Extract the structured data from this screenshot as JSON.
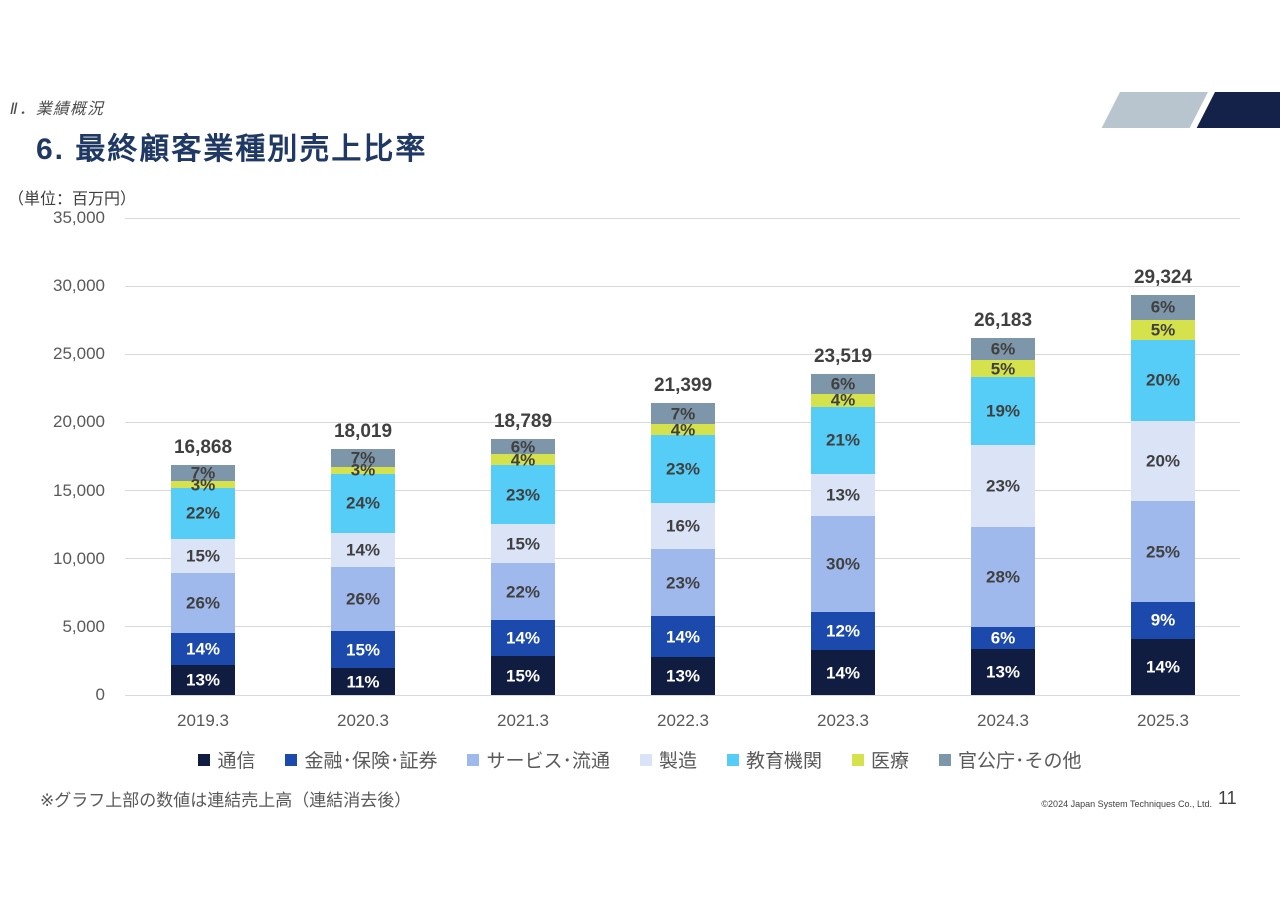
{
  "slide": {
    "section": "Ⅱ．業績概況",
    "title": "6. 最終顧客業種別売上比率",
    "unit_label": "（単位：百万円）",
    "footnote": "※グラフ上部の数値は連結売上高（連結消去後）",
    "copyright": "©2024 Japan System Techniques Co., Ltd.",
    "page_number": "11",
    "accent_colors": {
      "title_navy": "#1f3864",
      "deco_light": "#b8c5cf",
      "deco_dark": "#14224a"
    }
  },
  "chart_data": {
    "type": "bar",
    "stacked": true,
    "grid": true,
    "legend_position": "bottom",
    "ylim": [
      0,
      35000
    ],
    "y_ticks": [
      {
        "value": 0,
        "label": "0"
      },
      {
        "value": 5000,
        "label": "5,000"
      },
      {
        "value": 10000,
        "label": "10,000"
      },
      {
        "value": 15000,
        "label": "15,000"
      },
      {
        "value": 20000,
        "label": "20,000"
      },
      {
        "value": 25000,
        "label": "25,000"
      },
      {
        "value": 30000,
        "label": "30,000"
      },
      {
        "value": 35000,
        "label": "35,000"
      }
    ],
    "categories": [
      "2019.3",
      "2020.3",
      "2021.3",
      "2022.3",
      "2023.3",
      "2024.3",
      "2025.3"
    ],
    "totals": [
      16868,
      18019,
      18789,
      21399,
      23519,
      26183,
      29324
    ],
    "total_labels": [
      "16,868",
      "18,019",
      "18,789",
      "21,399",
      "23,519",
      "26,183",
      "29,324"
    ],
    "value_suffix": "%",
    "series": [
      {
        "name": "通信",
        "color": "#101d41",
        "label_color": "#ffffff",
        "values": [
          13,
          11,
          15,
          13,
          14,
          13,
          14
        ]
      },
      {
        "name": "金融･保険･証券",
        "color": "#1b49ac",
        "label_color": "#ffffff",
        "values": [
          14,
          15,
          14,
          14,
          12,
          6,
          9
        ]
      },
      {
        "name": "サービス･流通",
        "color": "#9fb9ec",
        "label_color": "#404040",
        "values": [
          26,
          26,
          22,
          23,
          30,
          28,
          25
        ]
      },
      {
        "name": "製造",
        "color": "#dbe3f7",
        "label_color": "#404040",
        "values": [
          15,
          14,
          15,
          16,
          13,
          23,
          20
        ]
      },
      {
        "name": "教育機関",
        "color": "#55cdf6",
        "label_color": "#404040",
        "values": [
          22,
          24,
          23,
          23,
          21,
          19,
          20
        ]
      },
      {
        "name": "医療",
        "color": "#d5e24b",
        "label_color": "#404040",
        "values": [
          3,
          3,
          4,
          4,
          4,
          5,
          5
        ]
      },
      {
        "name": "官公庁･その他",
        "color": "#7d96a9",
        "label_color": "#404040",
        "values": [
          7,
          7,
          6,
          7,
          6,
          6,
          6
        ]
      }
    ]
  }
}
